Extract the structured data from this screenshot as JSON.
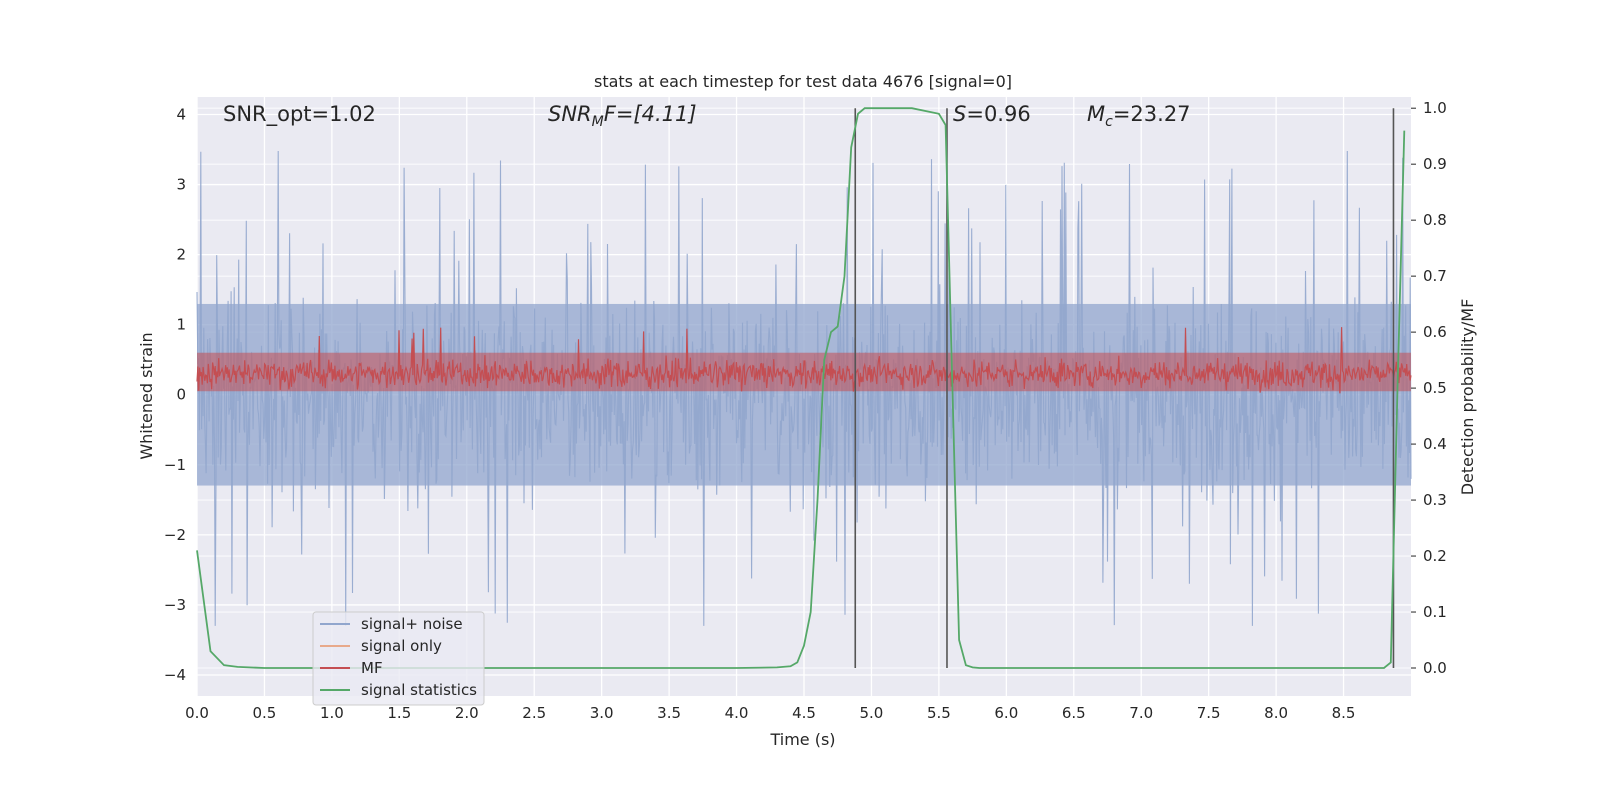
{
  "chart_data": {
    "type": "line",
    "title": "stats at each timestep for test data 4676 [signal=0]",
    "xlabel": "Time (s)",
    "ylabel": "Whitened strain",
    "ylabel_right": "Detection probability/MF",
    "xlim": [
      0.0,
      9.0
    ],
    "ylim": [
      -4.3,
      4.25
    ],
    "ylim_right": [
      -0.05,
      1.02
    ],
    "xticks": [
      "0.0",
      "0.5",
      "1.0",
      "1.5",
      "2.0",
      "2.5",
      "3.0",
      "3.5",
      "4.0",
      "4.5",
      "5.0",
      "5.5",
      "6.0",
      "6.5",
      "7.0",
      "7.5",
      "8.0",
      "8.5"
    ],
    "yticks": [
      "4",
      "3",
      "2",
      "1",
      "0",
      "−1",
      "−2",
      "−3",
      "−4"
    ],
    "yticks_right": [
      "1.0",
      "0.9",
      "0.8",
      "0.7",
      "0.6",
      "0.5",
      "0.4",
      "0.3",
      "0.2",
      "0.1",
      "0.0"
    ],
    "grid": true,
    "legend_position": "lower-left",
    "annotations": {
      "snr_opt": "SNR_opt=1.02",
      "snr_mf_main": "SNR",
      "snr_mf_sub": "M",
      "snr_mf_rest": "F=[4.11]",
      "s_main": "S",
      "s_rest": "=0.96",
      "mc_main": "M",
      "mc_sub": "c",
      "mc_rest": "=23.27"
    },
    "series": [
      {
        "name": "signal+ noise",
        "color": "#91a6cd",
        "axis": "left",
        "description_range": [
          -3.3,
          3.8
        ],
        "envelope": {
          "upper_typical": 1.8,
          "lower_typical": -1.8
        }
      },
      {
        "name": "signal only",
        "color": "#e8a98a",
        "axis": "left"
      },
      {
        "name": "MF",
        "color": "#c44e52",
        "axis": "left",
        "envelope": {
          "upper_typical": 0.6,
          "lower_typical": 0.05
        }
      },
      {
        "name": "signal statistics",
        "color": "#55a868",
        "axis": "right",
        "x": [
          0.0,
          0.1,
          0.2,
          0.3,
          0.5,
          1.0,
          2.0,
          3.0,
          4.0,
          4.3,
          4.4,
          4.45,
          4.5,
          4.55,
          4.6,
          4.65,
          4.7,
          4.75,
          4.8,
          4.85,
          4.9,
          4.95,
          5.0,
          5.05,
          5.1,
          5.3,
          5.5,
          5.55,
          5.6,
          5.65,
          5.7,
          5.75,
          5.8,
          6.0,
          7.0,
          8.0,
          8.5,
          8.8,
          8.85,
          8.9,
          8.95
        ],
        "y": [
          0.21,
          0.03,
          0.005,
          0.002,
          0.0,
          0.0,
          0.0,
          0.0,
          0.0,
          0.001,
          0.003,
          0.01,
          0.04,
          0.1,
          0.3,
          0.55,
          0.6,
          0.61,
          0.7,
          0.93,
          0.99,
          1.0,
          1.0,
          1.0,
          1.0,
          1.0,
          0.99,
          0.97,
          0.5,
          0.05,
          0.005,
          0.001,
          0.0,
          0.0,
          0.0,
          0.0,
          0.0,
          0.0,
          0.01,
          0.5,
          0.96
        ]
      }
    ],
    "vertical_lines_x": [
      4.88,
      5.56,
      8.87
    ],
    "vertical_lines_color": "#555555"
  }
}
